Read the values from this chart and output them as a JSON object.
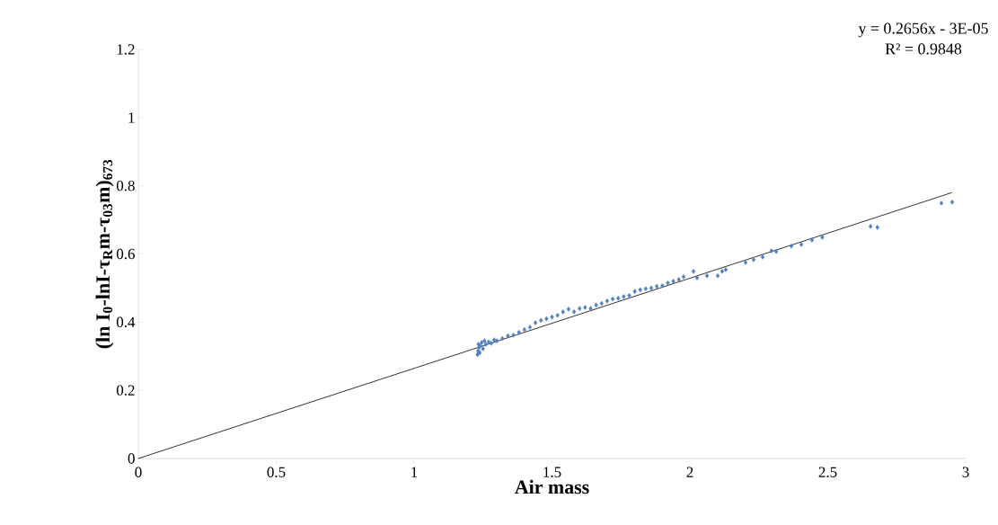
{
  "chart_data": {
    "type": "scatter",
    "xlabel": "Air mass",
    "ylabel": "(ln I$_{0}$-lnI-τ$_{R}$m-τ$_{03}$m)$_{673}$",
    "annotations": [
      "y = 0.2656x - 3E-05",
      "R² = 0.9848"
    ],
    "xlim": [
      0,
      3
    ],
    "ylim": [
      0,
      1.2
    ],
    "xticks": [
      0,
      0.5,
      1,
      1.5,
      2,
      2.5,
      3
    ],
    "yticks": [
      0,
      0.2,
      0.4,
      0.6,
      0.8,
      1,
      1.2
    ],
    "marker": "diamond",
    "series": [
      {
        "color": "#4f81bd",
        "x": [
          1.23,
          1.232,
          1.235,
          1.233,
          1.238,
          1.24,
          1.245,
          1.25,
          1.255,
          1.26,
          1.27,
          1.28,
          1.29,
          1.3,
          1.32,
          1.34,
          1.36,
          1.38,
          1.4,
          1.42,
          1.44,
          1.46,
          1.48,
          1.5,
          1.52,
          1.54,
          1.56,
          1.58,
          1.6,
          1.62,
          1.64,
          1.66,
          1.68,
          1.7,
          1.72,
          1.74,
          1.76,
          1.78,
          1.8,
          1.82,
          1.84,
          1.86,
          1.88,
          1.9,
          1.92,
          1.94,
          1.96,
          1.977,
          2.013,
          2.026,
          2.062,
          2.101,
          2.117,
          2.13,
          2.202,
          2.231,
          2.264,
          2.296,
          2.313,
          2.368,
          2.404,
          2.443,
          2.48,
          2.655,
          2.68,
          2.912,
          2.951
        ],
        "values": [
          0.305,
          0.315,
          0.325,
          0.335,
          0.31,
          0.33,
          0.34,
          0.322,
          0.345,
          0.335,
          0.342,
          0.338,
          0.348,
          0.345,
          0.352,
          0.36,
          0.362,
          0.37,
          0.378,
          0.385,
          0.398,
          0.405,
          0.41,
          0.415,
          0.42,
          0.43,
          0.438,
          0.43,
          0.44,
          0.443,
          0.44,
          0.45,
          0.455,
          0.462,
          0.468,
          0.47,
          0.475,
          0.478,
          0.49,
          0.495,
          0.498,
          0.5,
          0.505,
          0.507,
          0.515,
          0.52,
          0.525,
          0.533,
          0.549,
          0.53,
          0.536,
          0.536,
          0.549,
          0.554,
          0.575,
          0.583,
          0.591,
          0.609,
          0.607,
          0.623,
          0.628,
          0.641,
          0.649,
          0.681,
          0.678,
          0.749,
          0.752
        ]
      },
      {
        "type": "line",
        "color": "#000000",
        "marker": "none",
        "x": [
          0,
          2.95
        ],
        "values": [
          0,
          0.78
        ]
      }
    ]
  }
}
